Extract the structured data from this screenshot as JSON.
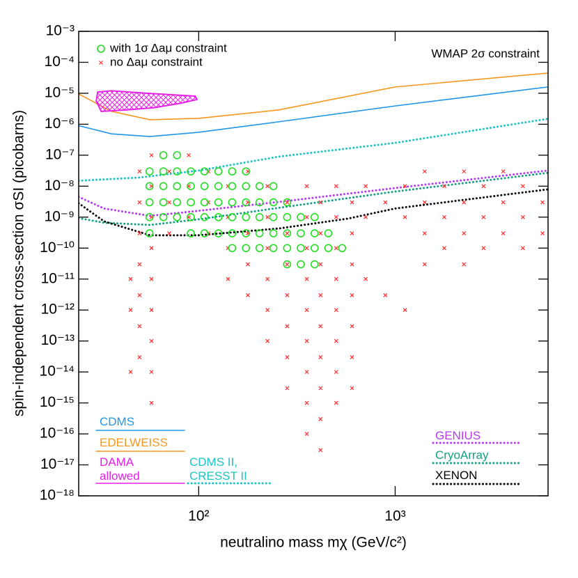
{
  "chart_data": {
    "type": "scatter",
    "xlabel": "neutralino mass mχ (GeV/c²)",
    "ylabel": "spin-independent cross-section σSI (picobarns)",
    "xscale": "log",
    "yscale": "log",
    "xlim": [
      24.5,
      6000
    ],
    "ylim": [
      1e-18,
      0.001
    ],
    "xticks": [
      {
        "value": 100,
        "label": "10²"
      },
      {
        "value": 1000,
        "label": "10³"
      }
    ],
    "yticks": [
      {
        "value": 1e-18,
        "label": "10⁻¹⁸"
      },
      {
        "value": 1e-17,
        "label": "10⁻¹⁷"
      },
      {
        "value": 1e-16,
        "label": "10⁻¹⁶"
      },
      {
        "value": 1e-15,
        "label": "10⁻¹⁵"
      },
      {
        "value": 1e-14,
        "label": "10⁻¹⁴"
      },
      {
        "value": 1e-13,
        "label": "10⁻¹³"
      },
      {
        "value": 1e-12,
        "label": "10⁻¹²"
      },
      {
        "value": 1e-11,
        "label": "10⁻¹¹"
      },
      {
        "value": 1e-10,
        "label": "10⁻¹⁰"
      },
      {
        "value": 1e-09,
        "label": "10⁻⁹"
      },
      {
        "value": 1e-08,
        "label": "10⁻⁸"
      },
      {
        "value": 1e-07,
        "label": "10⁻⁷"
      },
      {
        "value": 1e-06,
        "label": "10⁻⁶"
      },
      {
        "value": 1e-05,
        "label": "10⁻⁵"
      },
      {
        "value": 0.0001,
        "label": "10⁻⁴"
      },
      {
        "value": 0.001,
        "label": "10⁻³"
      }
    ],
    "annotations": [
      {
        "text": "WMAP 2σ constraint"
      }
    ],
    "series": [
      {
        "name": "no Δaμ constraint",
        "color": "#ff2a2a",
        "marker": "x",
        "x": [
          45,
          45,
          45,
          50,
          50,
          50,
          50,
          50,
          50,
          50,
          57.5,
          57.5,
          57.5,
          57.5,
          57.5,
          57.5,
          57.5,
          57.5,
          57.5,
          70.8,
          70.8,
          70.8,
          89,
          89,
          89,
          112,
          112,
          112,
          141,
          141,
          141,
          141,
          178,
          178,
          178,
          178,
          178,
          224,
          224,
          224,
          224,
          224,
          224,
          282,
          282,
          282,
          282,
          282,
          282,
          282,
          355,
          355,
          355,
          355,
          355,
          355,
          355,
          355,
          355,
          417,
          417,
          417,
          417,
          417,
          417,
          417,
          417,
          417,
          501,
          501,
          501,
          501,
          501,
          501,
          501,
          501,
          603,
          603,
          603,
          603,
          603,
          603,
          603,
          708,
          708,
          708,
          891,
          891,
          1122,
          1122,
          1122,
          1413,
          1413,
          1413,
          1413,
          1778,
          1778,
          1778,
          2239,
          2239,
          2239,
          2239,
          2818,
          2818,
          2818,
          3548,
          3548,
          3548,
          4467,
          4467,
          4467,
          5623,
          5623
        ],
        "values": [
          1e-11,
          1e-12,
          1e-14,
          3e-08,
          3e-09,
          3e-10,
          3e-11,
          3e-12,
          3e-13,
          3e-14,
          1e-07,
          1e-08,
          1e-09,
          1e-10,
          1e-11,
          1e-12,
          1e-13,
          1e-14,
          1e-15,
          3e-08,
          3e-09,
          3e-10,
          1e-07,
          1e-08,
          1e-09,
          3e-08,
          3e-09,
          3e-10,
          1e-08,
          1e-09,
          1e-10,
          1e-11,
          3e-08,
          3e-09,
          3e-10,
          3e-11,
          3e-12,
          1e-08,
          1e-09,
          1e-10,
          1e-11,
          1e-12,
          1e-13,
          3e-09,
          3e-10,
          3e-11,
          3e-12,
          3e-13,
          3e-14,
          3e-15,
          1e-08,
          1e-09,
          1e-10,
          1e-11,
          1e-12,
          1e-13,
          1e-14,
          1e-15,
          1e-16,
          3e-09,
          3e-10,
          3e-11,
          3e-12,
          3e-13,
          3e-14,
          3e-15,
          3e-16,
          3e-17,
          1e-08,
          1e-09,
          1e-10,
          1e-11,
          1e-12,
          1e-13,
          1e-14,
          1e-15,
          3e-09,
          3e-10,
          3e-11,
          3e-12,
          3e-13,
          3e-14,
          3e-15,
          1e-08,
          1e-09,
          1e-11,
          3e-09,
          3e-12,
          1e-08,
          1e-09,
          1e-12,
          3e-08,
          3e-09,
          3e-10,
          3e-11,
          1e-08,
          1e-09,
          1e-10,
          3e-08,
          3e-09,
          3e-10,
          3e-11,
          1e-08,
          1e-09,
          1e-10,
          3e-08,
          3e-09,
          3e-10,
          1e-08,
          1e-09,
          1e-10,
          3e-09,
          3e-10
        ]
      },
      {
        "name": "with 1σ Δaμ constraint",
        "color": "#22dd22",
        "marker": "circle",
        "x": [
          56.2,
          56.2,
          56.2,
          56.2,
          56.2,
          66.1,
          66.1,
          66.1,
          66.1,
          66.1,
          77.6,
          77.6,
          77.6,
          77.6,
          77.6,
          91.2,
          91.2,
          91.2,
          91.2,
          91.2,
          107,
          107,
          107,
          107,
          107,
          126,
          126,
          126,
          126,
          126,
          148,
          148,
          148,
          148,
          148,
          148,
          174,
          174,
          174,
          174,
          174,
          174,
          204,
          204,
          204,
          204,
          204,
          240,
          240,
          240,
          240,
          240,
          282,
          282,
          282,
          282,
          282,
          331,
          331,
          331,
          331,
          389,
          389,
          389,
          389,
          457,
          457,
          537
        ],
        "values": [
          3e-08,
          1e-08,
          3e-09,
          1e-09,
          3e-10,
          1e-07,
          3e-08,
          1e-08,
          3e-09,
          1e-09,
          1e-07,
          3e-08,
          1e-08,
          3e-09,
          1e-09,
          3e-08,
          1e-08,
          3e-09,
          1e-09,
          3e-10,
          3e-08,
          1e-08,
          3e-09,
          1e-09,
          3e-10,
          3e-08,
          1e-08,
          3e-09,
          1e-09,
          3e-10,
          3e-08,
          1e-08,
          3e-09,
          1e-09,
          3e-10,
          1e-10,
          3e-08,
          1e-08,
          3e-09,
          1e-09,
          3e-10,
          1e-10,
          1e-08,
          3e-09,
          1e-09,
          3e-10,
          1e-10,
          1e-08,
          3e-09,
          1e-09,
          3e-10,
          1e-10,
          3e-09,
          1e-09,
          3e-10,
          1e-10,
          3e-11,
          1e-09,
          3e-10,
          1e-10,
          3e-11,
          1e-09,
          3e-10,
          1e-10,
          3e-11,
          3e-10,
          1e-10,
          1e-10
        ]
      }
    ],
    "curves": [
      {
        "name": "CDMS",
        "color": "#1e96e6",
        "kind": "line",
        "style": "solid",
        "x": [
          24.5,
          36,
          56.5,
          100,
          256,
          1000,
          6000
        ],
        "values": [
          9e-07,
          4.9e-07,
          4e-07,
          5.5e-07,
          1.2e-06,
          3.9e-06,
          1.6e-05
        ]
      },
      {
        "name": "EDELWEISS",
        "color": "#f5961e",
        "kind": "line",
        "style": "solid",
        "x": [
          24.5,
          36,
          56.5,
          100,
          256,
          1000,
          6000
        ],
        "values": [
          9.5e-06,
          2.6e-06,
          1.4e-06,
          1.55e-06,
          2.9e-06,
          1.6e-05,
          4.5e-05
        ]
      },
      {
        "name": "DAMA allowed",
        "color": "#e620e6",
        "kind": "region",
        "style": "hatched",
        "x": [
          30.6,
          36,
          54.2,
          96,
          98,
          81.5,
          58.9,
          42.5,
          31.9,
          30.1
        ],
        "values": [
          1.1e-05,
          1.2e-05,
          1e-05,
          8.1e-06,
          6.3e-06,
          4.8e-06,
          3.4e-06,
          2.9e-06,
          2.6e-06,
          5.6e-06
        ]
      },
      {
        "name": "CDMS II, CRESST II",
        "color": "#1ec3c3",
        "kind": "line",
        "style": "dotted",
        "x": [
          24.5,
          50,
          100,
          256,
          1000,
          6000
        ],
        "values": [
          1.5e-08,
          1.9e-08,
          3.2e-08,
          9e-08,
          2.5e-07,
          1.5e-06
        ]
      },
      {
        "name": "GENIUS",
        "color": "#b43cf0",
        "kind": "line",
        "style": "dotted",
        "x": [
          24.5,
          33,
          56.5,
          100,
          256,
          1000,
          6000
        ],
        "values": [
          4.5e-09,
          1.9e-09,
          1.1e-09,
          1.6e-09,
          3.1e-09,
          8.7e-09,
          3.2e-08
        ]
      },
      {
        "name": "CryoArray",
        "color": "#14a082",
        "kind": "line",
        "style": "dotted",
        "x": [
          24.5,
          33,
          56.5,
          100,
          256,
          1000,
          6000
        ],
        "values": [
          9.3e-10,
          6.6e-10,
          5.6e-10,
          8.5e-10,
          2e-09,
          6.7e-09,
          2.7e-08
        ]
      },
      {
        "name": "XENON",
        "color": "#000000",
        "kind": "line",
        "style": "dotted",
        "x": [
          24.5,
          33,
          56.5,
          100,
          256,
          578,
          1000,
          6000
        ],
        "values": [
          2.8e-09,
          7.3e-10,
          2.6e-10,
          2.6e-10,
          4.3e-10,
          9e-10,
          1.9e-09,
          7.9e-09
        ]
      }
    ]
  }
}
